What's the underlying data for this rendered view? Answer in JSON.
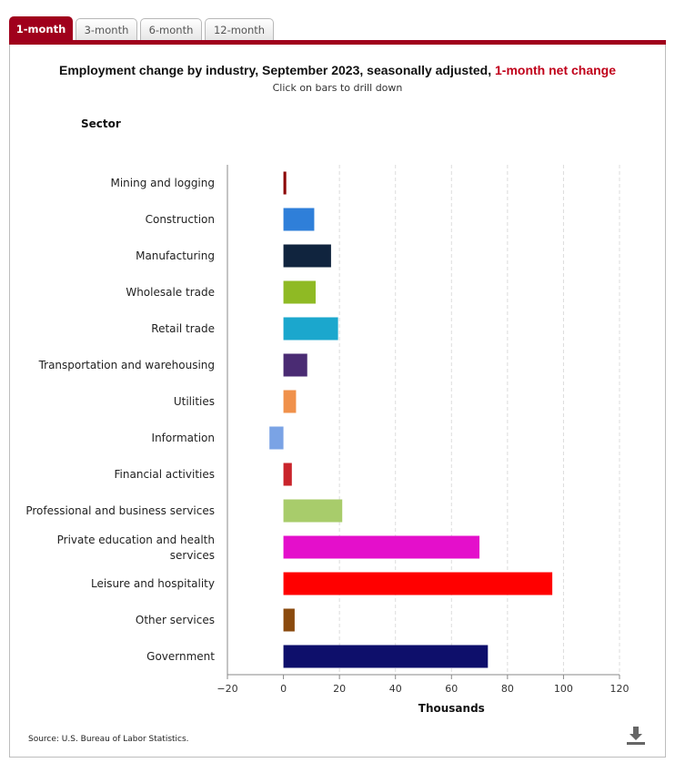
{
  "tabs": [
    {
      "label": "1-month",
      "active": true
    },
    {
      "label": "3-month",
      "active": false
    },
    {
      "label": "6-month",
      "active": false
    },
    {
      "label": "12-month",
      "active": false
    }
  ],
  "header": {
    "title_main": "Employment change by industry, September 2023, seasonally adjusted, ",
    "title_highlight": "1-month net change",
    "subtitle": "Click on bars to drill down",
    "sector_label": "Sector"
  },
  "footer": {
    "source": "Source: U.S. Bureau of Labor Statistics.",
    "download_icon": "download-icon"
  },
  "colors": {
    "accent": "#a0001c",
    "highlight": "#c0001a"
  },
  "chart_data": {
    "type": "bar",
    "orientation": "horizontal",
    "title": "Employment change by industry, September 2023, seasonally adjusted, 1-month net change",
    "xlabel": "Thousands",
    "ylabel": "Sector",
    "xlim": [
      -20,
      120
    ],
    "xticks": [
      -20,
      0,
      20,
      40,
      60,
      80,
      100,
      120
    ],
    "grid": true,
    "categories": [
      "Mining and logging",
      "Construction",
      "Manufacturing",
      "Wholesale trade",
      "Retail trade",
      "Transportation and warehousing",
      "Utilities",
      "Information",
      "Financial activities",
      "Professional and business services",
      "Private education and health services",
      "Leisure and hospitality",
      "Other services",
      "Government"
    ],
    "values": [
      1,
      11,
      17,
      11.5,
      19.5,
      8.5,
      4.5,
      -5,
      3,
      21,
      70,
      96,
      4,
      73
    ],
    "colors": [
      "#8b0000",
      "#2f7fd9",
      "#10243e",
      "#8fba24",
      "#1ba7cd",
      "#4a2b73",
      "#f0914b",
      "#7aa3e5",
      "#c9242b",
      "#a8cc6b",
      "#e40fcb",
      "#ff0000",
      "#8a4a0e",
      "#0e0f6b"
    ]
  }
}
